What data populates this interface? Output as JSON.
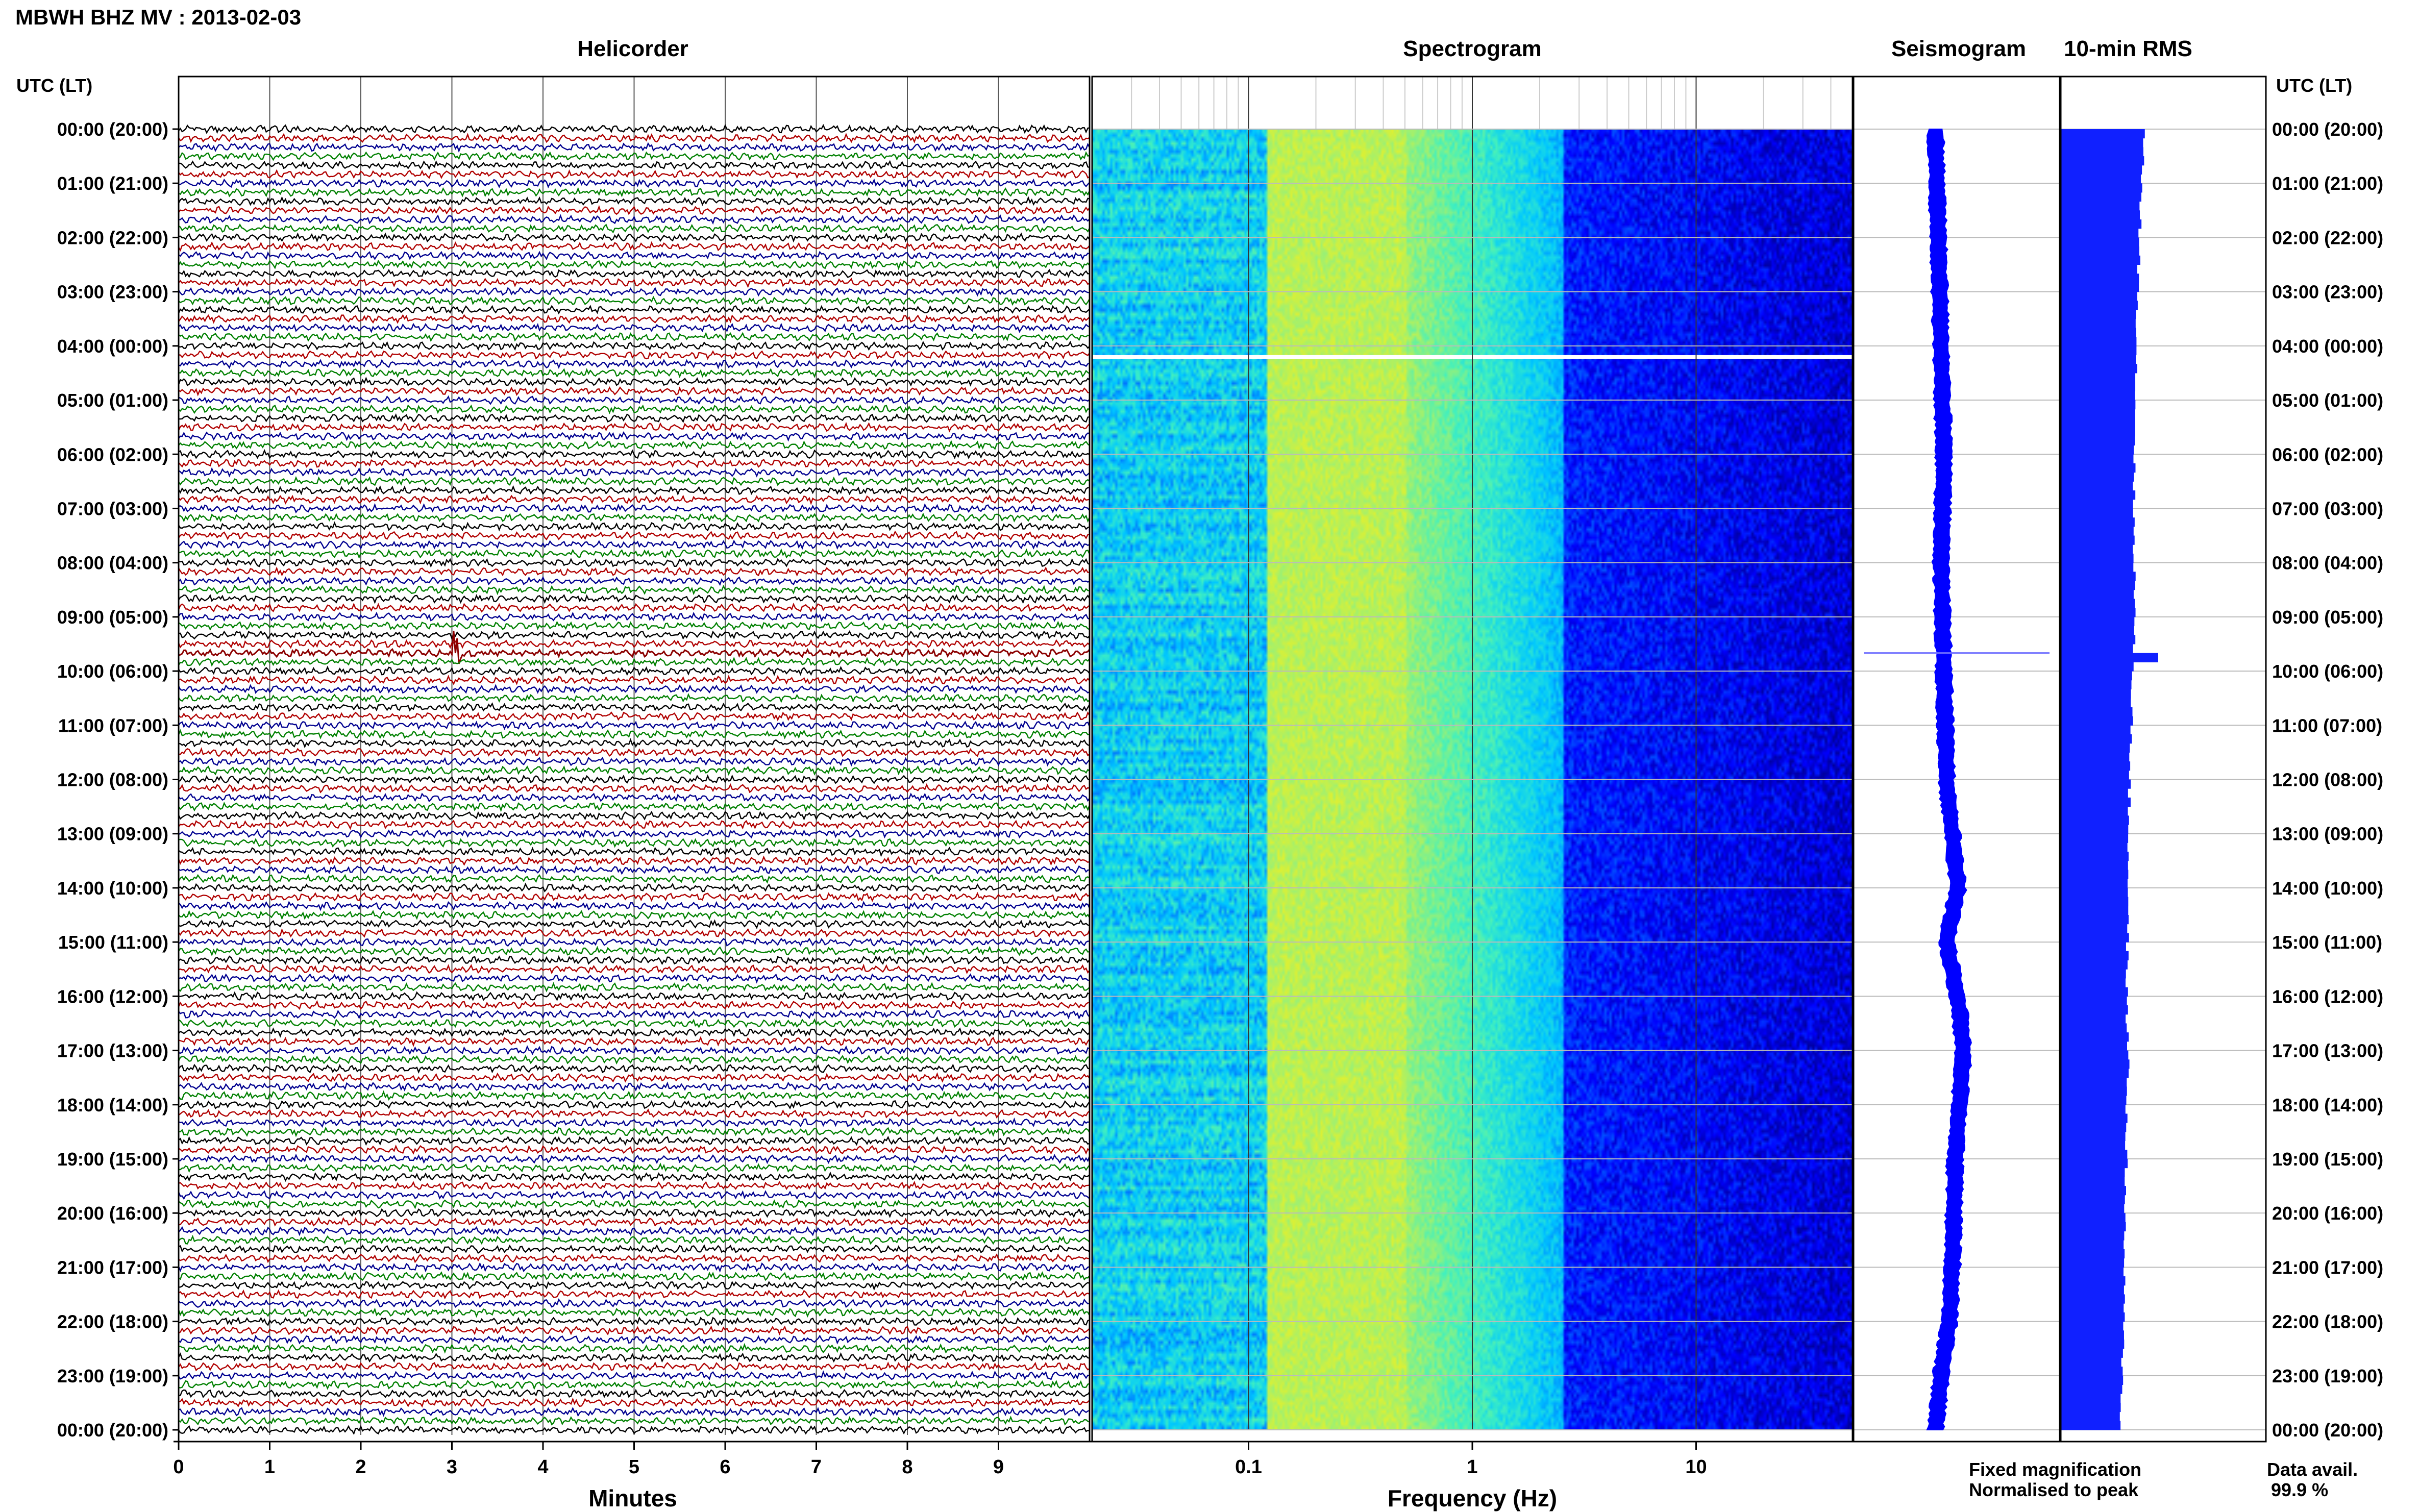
{
  "header": {
    "title": "MBWH BHZ MV : 2013-02-03"
  },
  "time_axis": {
    "label_left": "UTC (LT)",
    "label_right": "UTC (LT)",
    "ticks": [
      "00:00 (20:00)",
      "01:00 (21:00)",
      "02:00 (22:00)",
      "03:00 (23:00)",
      "04:00 (00:00)",
      "05:00 (01:00)",
      "06:00 (02:00)",
      "07:00 (03:00)",
      "08:00 (04:00)",
      "09:00 (05:00)",
      "10:00 (06:00)",
      "11:00 (07:00)",
      "12:00 (08:00)",
      "13:00 (09:00)",
      "14:00 (10:00)",
      "15:00 (11:00)",
      "16:00 (12:00)",
      "17:00 (13:00)",
      "18:00 (14:00)",
      "19:00 (15:00)",
      "20:00 (16:00)",
      "21:00 (17:00)",
      "22:00 (18:00)",
      "23:00 (19:00)",
      "00:00 (20:00)"
    ]
  },
  "footer": {
    "fixed_magnification": "Fixed magnification",
    "normalised": "Normalised to peak",
    "data_avail_label": "Data avail.",
    "data_avail_value": "99.9 %"
  },
  "colors": {
    "trace_colors": [
      "#000000",
      "#b00000",
      "#00008f",
      "#008000"
    ],
    "event": "#8b0000",
    "fixed_magnification": "#0000ff",
    "normalised": "#ff0000",
    "rms": "#1020ff",
    "seismogram": "#0000ff"
  },
  "chart_data": [
    {
      "type": "line",
      "panel": "helicorder",
      "title": "Helicorder",
      "xlabel": "Minutes",
      "x_ticks": [
        "0",
        "1",
        "2",
        "3",
        "4",
        "5",
        "6",
        "7",
        "8",
        "9"
      ],
      "xlim": [
        0,
        10
      ],
      "trace_minutes": 10,
      "trace_count": 145,
      "events": [
        {
          "time": "09:40",
          "minute": 3.0
        }
      ]
    },
    {
      "type": "heatmap",
      "panel": "spectrogram",
      "title": "Spectrogram",
      "xlabel": "Frequency (Hz)",
      "x_scale": "log",
      "xlim": [
        0.02,
        50
      ],
      "x_ticks": [
        {
          "label": "0.1",
          "value": 0.1
        },
        {
          "label": "1",
          "value": 1
        },
        {
          "label": "10",
          "value": 10
        }
      ],
      "colormap": [
        "#00007f",
        "#0000ff",
        "#0066ff",
        "#00c8ff",
        "#40f0c0",
        "#a0f070",
        "#f0f020"
      ],
      "peak_band_hz": [
        0.15,
        0.4
      ],
      "gap_time": "04:00"
    },
    {
      "type": "line",
      "panel": "seismogram",
      "title": "Seismogram",
      "offset_profile": [
        [
          "00:00",
          -0.15
        ],
        [
          "02:00",
          -0.1
        ],
        [
          "04:00",
          -0.05
        ],
        [
          "06:00",
          0.0
        ],
        [
          "08:00",
          -0.05
        ],
        [
          "10:00",
          0.0
        ],
        [
          "12:00",
          0.05
        ],
        [
          "14:00",
          0.25
        ],
        [
          "15:00",
          0.05
        ],
        [
          "16:00",
          0.25
        ],
        [
          "17:00",
          0.35
        ],
        [
          "19:00",
          0.2
        ],
        [
          "21:00",
          0.15
        ],
        [
          "22:00",
          0.1
        ],
        [
          "23:00",
          -0.05
        ],
        [
          "24:00",
          -0.15
        ]
      ],
      "events": [
        {
          "time": "09:40",
          "amplitude": 1.0
        }
      ]
    },
    {
      "type": "bar",
      "panel": "rms",
      "title": "10-min RMS",
      "orientation": "horizontal",
      "bin_minutes": 10,
      "rms_profile": [
        [
          "00:00",
          0.82
        ],
        [
          "01:00",
          0.78
        ],
        [
          "02:00",
          0.77
        ],
        [
          "03:00",
          0.75
        ],
        [
          "04:00",
          0.74
        ],
        [
          "05:00",
          0.73
        ],
        [
          "06:00",
          0.72
        ],
        [
          "07:00",
          0.71
        ],
        [
          "08:00",
          0.72
        ],
        [
          "09:00",
          0.72
        ],
        [
          "10:00",
          0.7
        ],
        [
          "11:00",
          0.69
        ],
        [
          "12:00",
          0.67
        ],
        [
          "13:00",
          0.66
        ],
        [
          "14:00",
          0.66
        ],
        [
          "15:00",
          0.65
        ],
        [
          "16:00",
          0.64
        ],
        [
          "17:00",
          0.66
        ],
        [
          "18:00",
          0.64
        ],
        [
          "19:00",
          0.64
        ],
        [
          "20:00",
          0.62
        ],
        [
          "21:00",
          0.62
        ],
        [
          "22:00",
          0.61
        ],
        [
          "23:00",
          0.6
        ],
        [
          "24:00",
          0.58
        ]
      ],
      "events": [
        {
          "time": "09:40",
          "value": 0.95
        }
      ]
    }
  ]
}
